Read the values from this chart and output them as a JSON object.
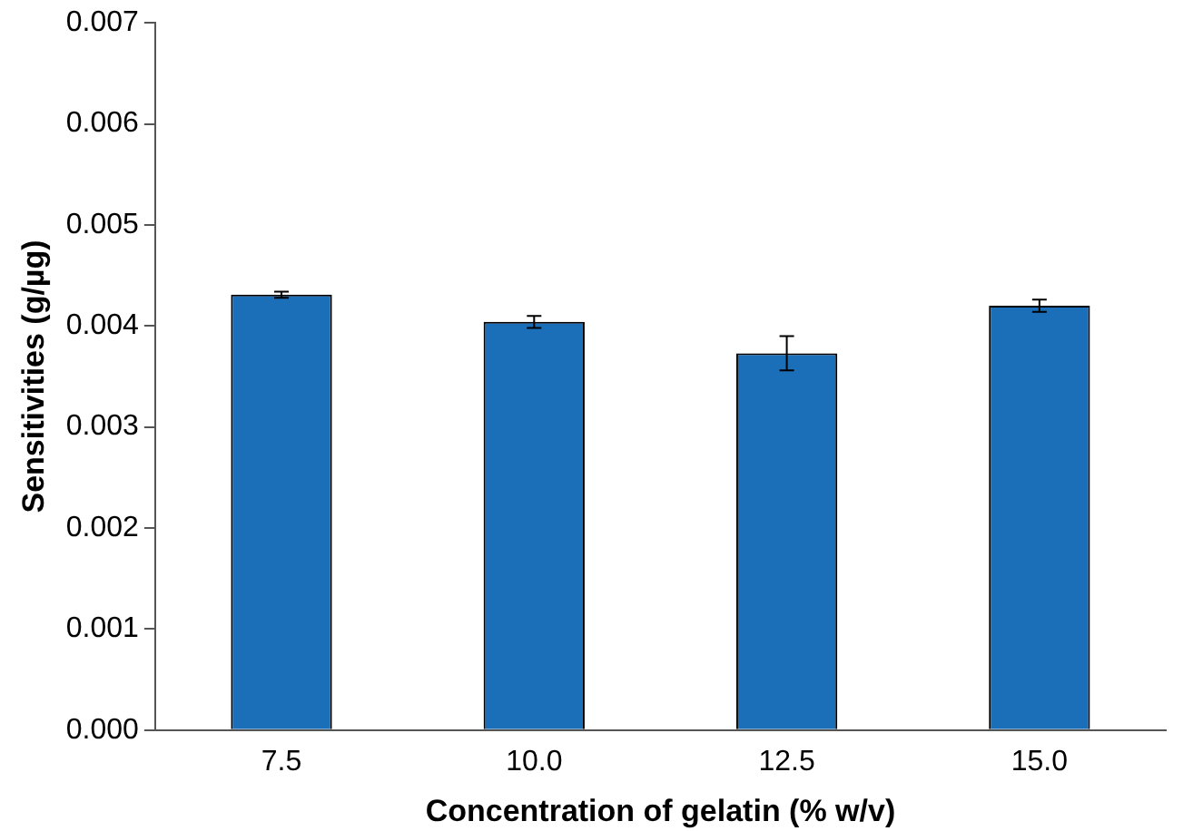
{
  "chart_data": {
    "type": "bar",
    "xlabel": "Concentration of gelatin (% w/v)",
    "ylabel": "Sensitivities (g/µg)",
    "categories": [
      "7.5",
      "10.0",
      "12.5",
      "15.0"
    ],
    "values": [
      0.00431,
      0.00404,
      0.00373,
      0.0042
    ],
    "errors": [
      3e-05,
      6e-05,
      0.00017,
      6e-05
    ],
    "color": "#1b6eb8",
    "ylim": [
      0,
      0.007
    ],
    "yticks": [
      {
        "value": 0,
        "label": "0.000"
      },
      {
        "value": 0.001,
        "label": "0.001"
      },
      {
        "value": 0.002,
        "label": "0.002"
      },
      {
        "value": 0.003,
        "label": "0.003"
      },
      {
        "value": 0.004,
        "label": "0.004"
      },
      {
        "value": 0.005,
        "label": "0.005"
      },
      {
        "value": 0.006,
        "label": "0.006"
      },
      {
        "value": 0.007,
        "label": "0.007"
      }
    ],
    "grid": false,
    "legend": false
  }
}
